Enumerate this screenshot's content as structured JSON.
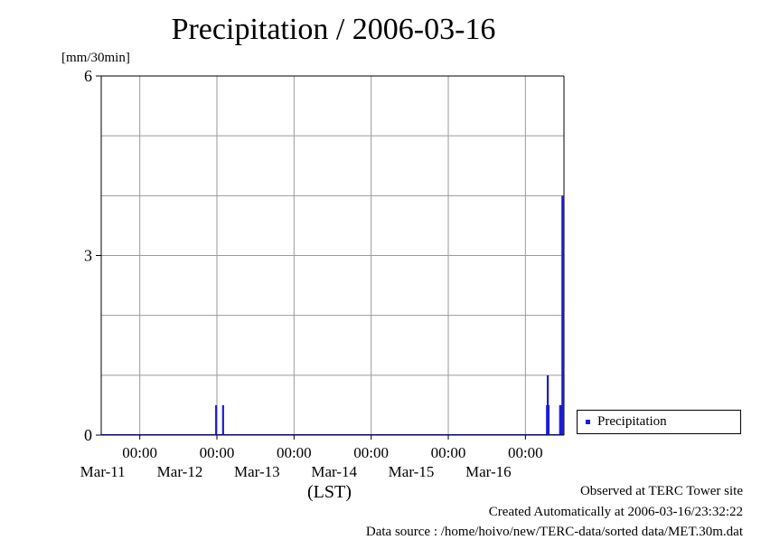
{
  "chart_data": {
    "type": "bar",
    "title": "Precipitation / 2006-03-16",
    "ylabel": "[mm/30min]",
    "xlabel": "(LST)",
    "ylim": [
      0,
      6
    ],
    "yticks": [
      "0",
      "3",
      "6"
    ],
    "ytick_values": [
      0,
      3,
      6
    ],
    "x_range_days": [
      10.5,
      16.5
    ],
    "xticks": [
      {
        "day": 11,
        "time": "00:00",
        "date": "Mar-11"
      },
      {
        "day": 12,
        "time": "00:00",
        "date": "Mar-12"
      },
      {
        "day": 13,
        "time": "00:00",
        "date": "Mar-13"
      },
      {
        "day": 14,
        "time": "00:00",
        "date": "Mar-14"
      },
      {
        "day": 15,
        "time": "00:00",
        "date": "Mar-15"
      },
      {
        "day": 16,
        "time": "00:00",
        "date": "Mar-16"
      }
    ],
    "grid": true,
    "legend_position": "right",
    "series": [
      {
        "name": "Precipitation",
        "color": "#1c1cd6",
        "points": [
          {
            "day": 11.99,
            "value": 0.5
          },
          {
            "day": 12.08,
            "value": 0.5
          },
          {
            "day": 16.28,
            "value": 0.5
          },
          {
            "day": 16.29,
            "value": 1.0
          },
          {
            "day": 16.3,
            "value": 0.5
          },
          {
            "day": 16.45,
            "value": 0.5
          },
          {
            "day": 16.46,
            "value": 0.5
          },
          {
            "day": 16.48,
            "value": 4.0
          }
        ]
      }
    ]
  },
  "footer": {
    "observed": "Observed at TERC Tower site",
    "created": "Created Automatically at 2006-03-16/23:32:22",
    "source": "Data source : /home/hoivo/new/TERC-data/sorted  data/MET.30m.dat"
  }
}
